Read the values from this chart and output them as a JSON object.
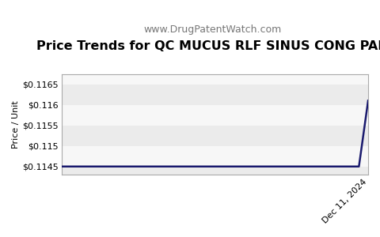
{
  "title": "Price Trends for QC MUCUS RLF SINUS CONG PAIN",
  "subtitle": "www.DrugPatentWatch.com",
  "ylabel": "Price / Unit",
  "xlabel_tick": "Dec 11, 2024",
  "ylim": [
    0.1143,
    0.11675
  ],
  "yticks": [
    0.1145,
    0.115,
    0.1155,
    0.116,
    0.1165
  ],
  "ytick_labels": [
    "$0.1145",
    "$0.115",
    "$0.1155",
    "$0.116",
    "$0.1165"
  ],
  "x_data": [
    0,
    0.96,
    0.97,
    1.0
  ],
  "y_data": [
    0.1145,
    0.1145,
    0.1145,
    0.1161
  ],
  "line_color": "#1a1a6e",
  "line_width": 1.8,
  "bg_color": "#ffffff",
  "plot_bg_color": "#ffffff",
  "band_color_light": "#ebebeb",
  "band_color_white": "#f7f7f7",
  "title_fontsize": 11.5,
  "subtitle_fontsize": 9,
  "ylabel_fontsize": 8,
  "tick_fontsize": 8
}
